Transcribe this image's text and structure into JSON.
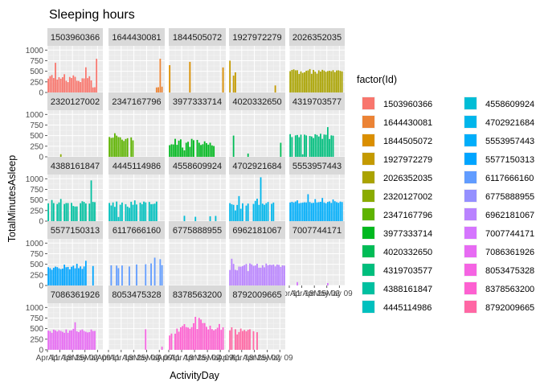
{
  "chart_data": {
    "type": "bar",
    "title": "Sleeping hours",
    "xlabel": "ActivityDay",
    "ylabel": "TotalMinutesAsleep",
    "ylim": [
      0,
      1100
    ],
    "y_ticks": [
      0,
      250,
      500,
      750,
      1000
    ],
    "x_tick_labels": [
      "Apr 11",
      "Apr 18",
      "Apr 25",
      "May 02",
      "May 09"
    ],
    "x_range": [
      "2016-04-11",
      "2016-05-12"
    ],
    "x_tick_dates": [
      "2016-04-11",
      "2016-04-18",
      "2016-04-25",
      "2016-05-02",
      "2016-05-09"
    ],
    "legend_title": "factor(Id)",
    "legend_position": "right",
    "grid": true,
    "series": [
      {
        "name": "1503960366",
        "color": "#F8766D",
        "values": [
          327,
          384,
          412,
          340,
          700,
          304,
          360,
          325,
          361,
          430,
          277,
          245,
          366,
          341,
          404,
          369,
          277,
          273,
          247,
          334,
          331,
          594,
          338,
          383,
          285,
          119,
          124,
          796,
          null,
          null,
          null
        ]
      },
      {
        "name": "1644430081",
        "color": "#EB8335",
        "values": [
          null,
          null,
          null,
          null,
          null,
          null,
          null,
          null,
          null,
          null,
          null,
          null,
          null,
          null,
          null,
          null,
          null,
          null,
          null,
          null,
          null,
          null,
          null,
          null,
          null,
          null,
          119,
          124,
          796,
          137,
          null
        ]
      },
      {
        "name": "1844505072",
        "color": "#DA8F00",
        "values": [
          644,
          null,
          null,
          null,
          null,
          null,
          null,
          null,
          null,
          null,
          null,
          722,
          null,
          null,
          null,
          null,
          null,
          null,
          null,
          null,
          null,
          null,
          null,
          null,
          null,
          null,
          null,
          null,
          null,
          590,
          null
        ]
      },
      {
        "name": "1927972279",
        "color": "#C49A00",
        "values": [
          750,
          null,
          398,
          475,
          null,
          null,
          null,
          null,
          null,
          null,
          null,
          null,
          null,
          null,
          null,
          null,
          null,
          null,
          null,
          null,
          null,
          null,
          null,
          null,
          null,
          166,
          null,
          null,
          null,
          null,
          null
        ]
      },
      {
        "name": "2026352035",
        "color": "#AAA300",
        "values": [
          503,
          531,
          545,
          523,
          524,
          437,
          498,
          461,
          477,
          511,
          520,
          552,
          440,
          532,
          490,
          444,
          522,
          495,
          534,
          515,
          488,
          505,
          512,
          502,
          526,
          481,
          519,
          523,
          509,
          498,
          null
        ]
      },
      {
        "name": "2320127002",
        "color": "#8AAB00",
        "values": [
          null,
          null,
          null,
          null,
          null,
          null,
          null,
          61,
          null,
          null,
          null,
          null,
          null,
          null,
          null,
          null,
          null,
          null,
          null,
          null,
          null,
          null,
          null,
          null,
          null,
          null,
          null,
          null,
          null,
          null,
          null
        ]
      },
      {
        "name": "2347167796",
        "color": "#5EB300",
        "values": [
          467,
          445,
          452,
          556,
          500,
          465,
          460,
          405,
          374,
          420,
          439,
          null,
          458,
          388,
          null,
          null,
          null,
          null,
          null,
          null,
          null,
          null,
          null,
          null,
          null,
          null,
          null,
          null,
          null,
          null,
          null
        ]
      },
      {
        "name": "3977333714",
        "color": "#00B81F",
        "values": [
          274,
          295,
          291,
          424,
          283,
          381,
          412,
          219,
          152,
          332,
          355,
          235,
          423,
          391,
          null,
          398,
          332,
          279,
          297,
          365,
          323,
          287,
          332,
          269,
          254,
          null,
          null,
          null,
          null,
          null,
          null
        ]
      },
      {
        "name": "4020332650",
        "color": "#00BC56",
        "values": [
          null,
          null,
          501,
          null,
          null,
          null,
          null,
          null,
          null,
          null,
          77,
          null,
          null,
          null,
          null,
          null,
          null,
          null,
          null,
          null,
          null,
          null,
          null,
          null,
          null,
          null,
          null,
          null,
          331,
          null,
          null
        ]
      },
      {
        "name": "4319703577",
        "color": "#00BE7D",
        "values": [
          535,
          465,
          null,
          506,
          515,
          461,
          523,
          59,
          523,
          504,
          null,
          492,
          480,
          443,
          533,
          516,
          479,
          544,
          423,
          526,
          520,
          700,
          420,
          506,
          499,
          null,
          null,
          null,
          null,
          null,
          null
        ]
      },
      {
        "name": "4388161847",
        "color": "#00C0A0",
        "values": [
          420,
          null,
          499,
          426,
          null,
          404,
          441,
          523,
          null,
          404,
          427,
          426,
          null,
          431,
          358,
          344,
          347,
          null,
          423,
          469,
          453,
          417,
          null,
          415,
          961,
          453,
          448,
          null,
          null,
          null,
          null
        ]
      },
      {
        "name": "4445114986",
        "color": "#00C0BE",
        "values": [
          429,
          370,
          441,
          337,
          462,
          98,
          388,
          439,
          null,
          400,
          342,
          315,
          457,
          386,
          490,
          393,
          null,
          436,
          400,
          461,
          443,
          null,
          452,
          400,
          403,
          413,
          461,
          null,
          null,
          null,
          null
        ]
      },
      {
        "name": "4558609924",
        "color": "#00BDD6",
        "values": [
          null,
          null,
          null,
          null,
          null,
          null,
          null,
          null,
          126,
          null,
          null,
          null,
          null,
          null,
          103,
          null,
          null,
          null,
          null,
          null,
          null,
          null,
          115,
          null,
          null,
          123,
          null,
          null,
          null,
          null,
          null
        ]
      },
      {
        "name": "4702921684",
        "color": "#00B6EB",
        "values": [
          425,
          400,
          384,
          253,
          382,
          591,
          293,
          421,
          null,
          367,
          415,
          null,
          null,
          406,
          478,
          530,
          384,
          1035,
          412,
          385,
          423,
          452,
          null,
          409,
          439,
          null,
          null,
          null,
          null,
          null,
          null
        ]
      },
      {
        "name": "5553957443",
        "color": "#00AEFA",
        "values": [
          441,
          455,
          440,
          463,
          490,
          420,
          430,
          438,
          445,
          441,
          635,
          450,
          427,
          432,
          519,
          440,
          448,
          455,
          547,
          440,
          422,
          453,
          465,
          430,
          511,
          470,
          448,
          432,
          461,
          450,
          null
        ]
      },
      {
        "name": "5577150313",
        "color": "#00A5FF",
        "values": [
          432,
          408,
          370,
          417,
          445,
          432,
          405,
          386,
          398,
          492,
          430,
          437,
          380,
          441,
          468,
          404,
          511,
          408,
          450,
          390,
          449,
          582,
          null,
          null,
          null,
          459,
          null,
          null,
          null,
          null,
          null
        ]
      },
      {
        "name": "6117666160",
        "color": "#619CFF",
        "values": [
          null,
          475,
          null,
          null,
          469,
          409,
          null,
          471,
          null,
          null,
          null,
          448,
          null,
          null,
          null,
          496,
          null,
          null,
          null,
          null,
          501,
          null,
          null,
          520,
          null,
          656,
          null,
          null,
          620,
          480,
          null
        ]
      },
      {
        "name": "6775888955",
        "color": "#9590FF",
        "values": [
          null,
          null,
          null,
          null,
          null,
          null,
          null,
          null,
          null,
          null,
          null,
          null,
          null,
          null,
          null,
          null,
          null,
          null,
          null,
          null,
          null,
          null,
          null,
          null,
          null,
          null,
          null,
          null,
          null,
          null,
          null
        ]
      },
      {
        "name": "6962181067",
        "color": "#B983FF",
        "values": [
          366,
          630,
          508,
          370,
          357,
          446,
          443,
          458,
          482,
          508,
          339,
          520,
          499,
          463,
          472,
          511,
          419,
          419,
          478,
          428,
          517,
          476,
          491,
          482,
          494,
          451,
          494,
          485,
          439,
          474,
          468
        ]
      },
      {
        "name": "7007744171",
        "color": "#D575FE",
        "values": [
          null,
          null,
          null,
          null,
          79,
          null,
          null,
          null,
          null,
          null,
          null,
          null,
          null,
          null,
          null,
          null,
          null,
          null,
          null,
          null,
          null,
          58,
          null,
          null,
          null,
          null,
          null,
          null,
          null,
          null,
          null
        ]
      },
      {
        "name": "7086361926",
        "color": "#E76BF3",
        "values": [
          453,
          440,
          401,
          477,
          459,
          432,
          464,
          445,
          425,
          401,
          480,
          401,
          455,
          459,
          496,
          649,
          436,
          418,
          462,
          481,
          445,
          426,
          410,
          418,
          480,
          444,
          445,
          null,
          null,
          null,
          null
        ]
      },
      {
        "name": "8053475328",
        "color": "#F564E3",
        "values": [
          null,
          null,
          null,
          null,
          null,
          null,
          null,
          null,
          null,
          null,
          null,
          null,
          null,
          null,
          null,
          null,
          null,
          null,
          null,
          null,
          486,
          null,
          null,
          null,
          null,
          null,
          null,
          null,
          null,
          74,
          null
        ]
      },
      {
        "name": "8378563200",
        "color": "#FD61D1",
        "values": [
          338,
          383,
          null,
          380,
          501,
          428,
          532,
          562,
          606,
          535,
          525,
          499,
          535,
          627,
          778,
          491,
          752,
          713,
          630,
          631,
          543,
          481,
          569,
          489,
          459,
          487,
          521,
          609,
          471,
          530,
          null
        ]
      },
      {
        "name": "8792009665",
        "color": "#FF67A4",
        "values": [
          458,
          531,
          null,
          486,
          363,
          419,
          501,
          443,
          468,
          436,
          471,
          485,
          null,
          439,
          null,
          416,
          null,
          null,
          null,
          null,
          null,
          null,
          null,
          null,
          null,
          null,
          null,
          null,
          null,
          null,
          null
        ]
      }
    ]
  }
}
